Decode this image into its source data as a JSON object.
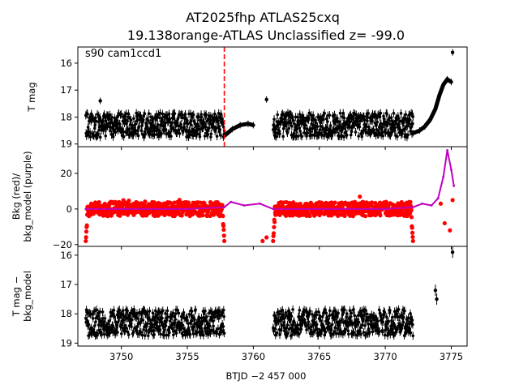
{
  "title_line1": "AT2025fhp  ATLAS25cxq",
  "title_line2": "19.138orange-ATLAS Unclassified z= -99.0",
  "annotation": "s90 cam1ccd1",
  "colors": {
    "points": "#000000",
    "bkg": "#ff0000",
    "bkg_model": "#bf00bf",
    "marker_line": "#ff0000"
  },
  "chart_data": [
    {
      "type": "scatter",
      "panel": "top",
      "ylabel": "T mag",
      "xlim": [
        3746.7,
        3776.2
      ],
      "ylim": [
        19.1,
        15.4
      ],
      "y_inverted": true,
      "yticks": [
        16,
        17,
        18,
        19
      ],
      "vline_x": 3757.8,
      "series": [
        {
          "segment": "sector-part-1 dense",
          "x_range": [
            3747.3,
            3757.8
          ],
          "y_center": 18.3,
          "y_scatter": 0.45
        },
        {
          "segment": "ramp after marker",
          "x": [
            3757.8,
            3758.4,
            3759.0,
            3759.6,
            3760.0
          ],
          "y": [
            18.7,
            18.45,
            18.3,
            18.25,
            18.3
          ]
        },
        {
          "segment": "sector-part-2 dense",
          "x_range": [
            3761.5,
            3772.1
          ],
          "y_center": 18.3,
          "y_scatter": 0.45
        },
        {
          "segment": "rise",
          "x": [
            3772.1,
            3772.6,
            3773.0,
            3773.4,
            3773.8,
            3774.1,
            3774.4,
            3774.7,
            3775.0
          ],
          "y": [
            18.6,
            18.5,
            18.35,
            18.1,
            17.7,
            17.2,
            16.8,
            16.6,
            16.7
          ]
        },
        {
          "segment": "outliers",
          "x": [
            3748.4,
            3761.0,
            3775.1
          ],
          "y": [
            17.4,
            17.35,
            15.6
          ]
        }
      ]
    },
    {
      "type": "scatter",
      "panel": "middle",
      "ylabel": "Bkg (red)/\nbkg_model (purple)",
      "ylabel_lines": [
        "Bkg (red)/",
        "bkg_model (purple)"
      ],
      "xlim": [
        3746.7,
        3776.2
      ],
      "ylim": [
        -21,
        35
      ],
      "yticks": [
        -20,
        0,
        20
      ],
      "series": [
        {
          "name": "Bkg",
          "color": "red",
          "segments": [
            [
              3747.3,
              3757.8
            ],
            [
              3761.5,
              3772.1
            ]
          ],
          "y_center": 0,
          "y_scatter": 4,
          "edge_drop": -18
        },
        {
          "name": "bkg_model",
          "color": "purple",
          "x": [
            3747.3,
            3750,
            3755,
            3757.8,
            3758.3,
            3759.3,
            3760.5,
            3761.5,
            3765,
            3770,
            3772.1,
            3772.8,
            3773.5,
            3774.0,
            3774.4,
            3774.7,
            3775.0,
            3775.2
          ],
          "y": [
            0,
            0,
            0,
            1,
            4,
            2,
            3,
            0,
            0,
            0,
            1,
            3,
            2,
            6,
            18,
            33,
            22,
            13
          ]
        },
        {
          "name": "Bkg outliers",
          "color": "red",
          "x": [
            3760.7,
            3761.0,
            3774.2,
            3774.5,
            3774.9,
            3775.1
          ],
          "y": [
            -18,
            -16,
            3,
            -8,
            -12,
            5
          ]
        }
      ]
    },
    {
      "type": "scatter",
      "panel": "bottom",
      "ylabel": "T mag −\nbkg_model",
      "ylabel_lines": [
        "T mag −",
        "bkg_model"
      ],
      "xlabel": "BTJD −2 457 000",
      "xlim": [
        3746.7,
        3776.2
      ],
      "ylim": [
        19.1,
        15.7
      ],
      "y_inverted": true,
      "yticks": [
        16,
        17,
        18,
        19
      ],
      "xticks": [
        3750,
        3755,
        3760,
        3765,
        3770,
        3775
      ],
      "series": [
        {
          "segment": "sector-part-1 dense",
          "x_range": [
            3747.3,
            3757.8
          ],
          "y_center": 18.3,
          "y_scatter": 0.45
        },
        {
          "segment": "sector-part-2 dense",
          "x_range": [
            3761.5,
            3772.1
          ],
          "y_center": 18.3,
          "y_scatter": 0.45
        },
        {
          "segment": "late points",
          "x": [
            3773.8,
            3773.9,
            3775.1
          ],
          "y": [
            17.2,
            17.5,
            15.9
          ]
        }
      ]
    }
  ]
}
